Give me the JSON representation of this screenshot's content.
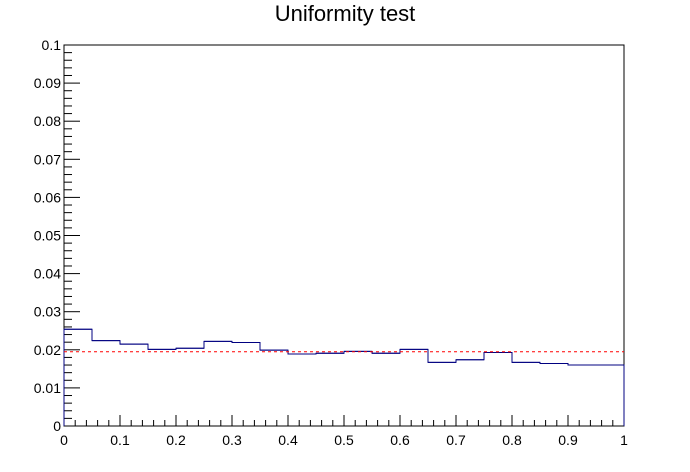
{
  "chart_data": {
    "type": "histogram",
    "title": "Uniformity test",
    "xlabel": "",
    "ylabel": "",
    "xlim": [
      0,
      1
    ],
    "ylim": [
      0,
      0.1
    ],
    "grid": false,
    "bin_edges": [
      0,
      0.05,
      0.1,
      0.15,
      0.2,
      0.25,
      0.3,
      0.35,
      0.4,
      0.45,
      0.5,
      0.55,
      0.6,
      0.65,
      0.7,
      0.75,
      0.8,
      0.85,
      0.9,
      0.95,
      1.0
    ],
    "series": [
      {
        "values": [
          0.0254,
          0.0224,
          0.0215,
          0.0201,
          0.0204,
          0.0222,
          0.0219,
          0.0199,
          0.0189,
          0.0191,
          0.0196,
          0.0191,
          0.0201,
          0.0167,
          0.0174,
          0.0193,
          0.0167,
          0.0164,
          0.016,
          0.016
        ],
        "color": "#000080"
      }
    ],
    "reference_line": {
      "y": 0.0195,
      "color": "#ff0000",
      "style": "dashed"
    },
    "x_ticks": [
      "0",
      "0.1",
      "0.2",
      "0.3",
      "0.4",
      "0.5",
      "0.6",
      "0.7",
      "0.8",
      "0.9",
      "1"
    ],
    "y_ticks": [
      "0",
      "0.01",
      "0.02",
      "0.03",
      "0.04",
      "0.05",
      "0.06",
      "0.07",
      "0.08",
      "0.09",
      "0.1"
    ]
  }
}
